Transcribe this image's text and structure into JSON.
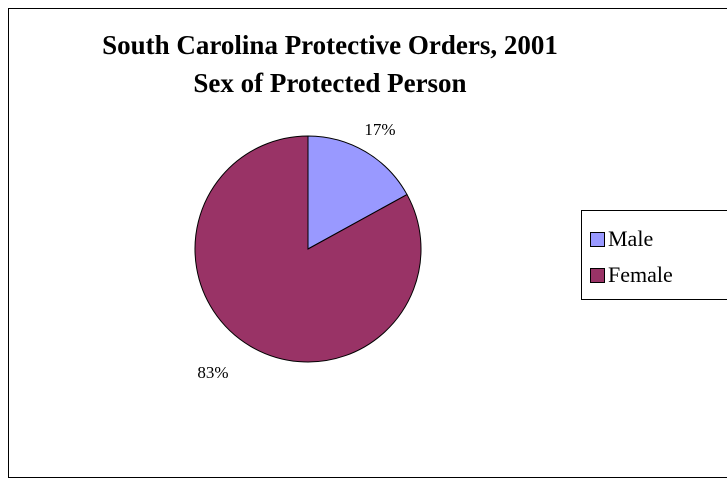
{
  "chart_data": {
    "type": "pie",
    "title": "South Carolina Protective Orders, 2001",
    "subtitle": "Sex of Protected Person",
    "slices": [
      {
        "label": "Male",
        "value": 17,
        "display": "17%",
        "color": "#9999ff"
      },
      {
        "label": "Female",
        "value": 83,
        "display": "83%",
        "color": "#993366"
      }
    ],
    "legend_position": "right"
  }
}
